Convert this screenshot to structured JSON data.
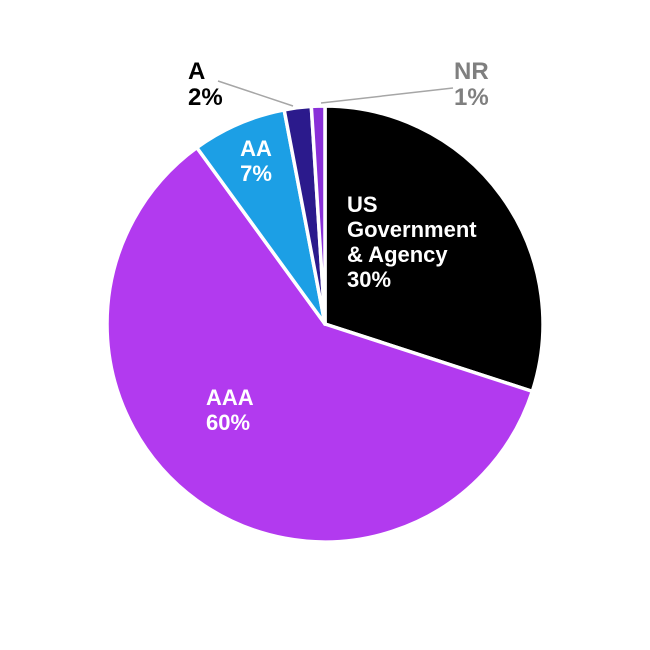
{
  "chart_data": {
    "type": "pie",
    "title": "",
    "unit": "percent",
    "direction": "clockwise",
    "start_angle_deg": 0,
    "legend": "none",
    "background_color": "#FFFFFF",
    "separator_color": "#FFFFFF",
    "leader_line_color": "#A6A6A6",
    "slices": [
      {
        "label": "US Government & Agency",
        "value": 30,
        "pct_label": "30%",
        "color": "#000000",
        "label_color": "#FFFFFF",
        "label_placement": "inside"
      },
      {
        "label": "AAA",
        "value": 60,
        "pct_label": "60%",
        "color": "#B23AEF",
        "label_color": "#FFFFFF",
        "label_placement": "inside"
      },
      {
        "label": "AA",
        "value": 7,
        "pct_label": "7%",
        "color": "#1C9FE5",
        "label_color": "#FFFFFF",
        "label_placement": "inside"
      },
      {
        "label": "A",
        "value": 2,
        "pct_label": "2%",
        "color": "#2B1A8C",
        "label_color": "#000000",
        "label_placement": "outside"
      },
      {
        "label": "NR",
        "value": 1,
        "pct_label": "1%",
        "color": "#8930D8",
        "label_color": "#7F7F7F",
        "label_placement": "outside"
      }
    ]
  }
}
